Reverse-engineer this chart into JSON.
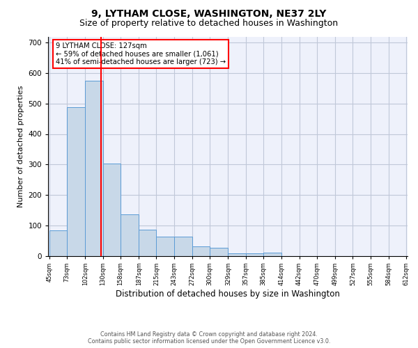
{
  "title1": "9, LYTHAM CLOSE, WASHINGTON, NE37 2LY",
  "title2": "Size of property relative to detached houses in Washington",
  "xlabel": "Distribution of detached houses by size in Washington",
  "ylabel": "Number of detached properties",
  "bar_edges": [
    45,
    73,
    102,
    130,
    158,
    187,
    215,
    243,
    272,
    300,
    329,
    357,
    385,
    414,
    442,
    470,
    499,
    527,
    555,
    584,
    612
  ],
  "bar_heights": [
    84,
    488,
    575,
    302,
    136,
    86,
    64,
    64,
    30,
    27,
    9,
    7,
    10,
    0,
    0,
    0,
    0,
    0,
    0,
    0
  ],
  "bar_color": "#c8d8e8",
  "bar_edge_color": "#5b9bd5",
  "red_line_x": 127,
  "annotation_text": "9 LYTHAM CLOSE: 127sqm\n← 59% of detached houses are smaller (1,061)\n41% of semi-detached houses are larger (723) →",
  "annotation_box_color": "white",
  "annotation_box_edge": "red",
  "ylim": [
    0,
    720
  ],
  "yticks": [
    0,
    100,
    200,
    300,
    400,
    500,
    600,
    700
  ],
  "footer1": "Contains HM Land Registry data © Crown copyright and database right 2024.",
  "footer2": "Contains public sector information licensed under the Open Government Licence v3.0.",
  "bg_color": "#eef1fb",
  "grid_color": "#c0c8d8",
  "title1_fontsize": 10,
  "title2_fontsize": 9
}
